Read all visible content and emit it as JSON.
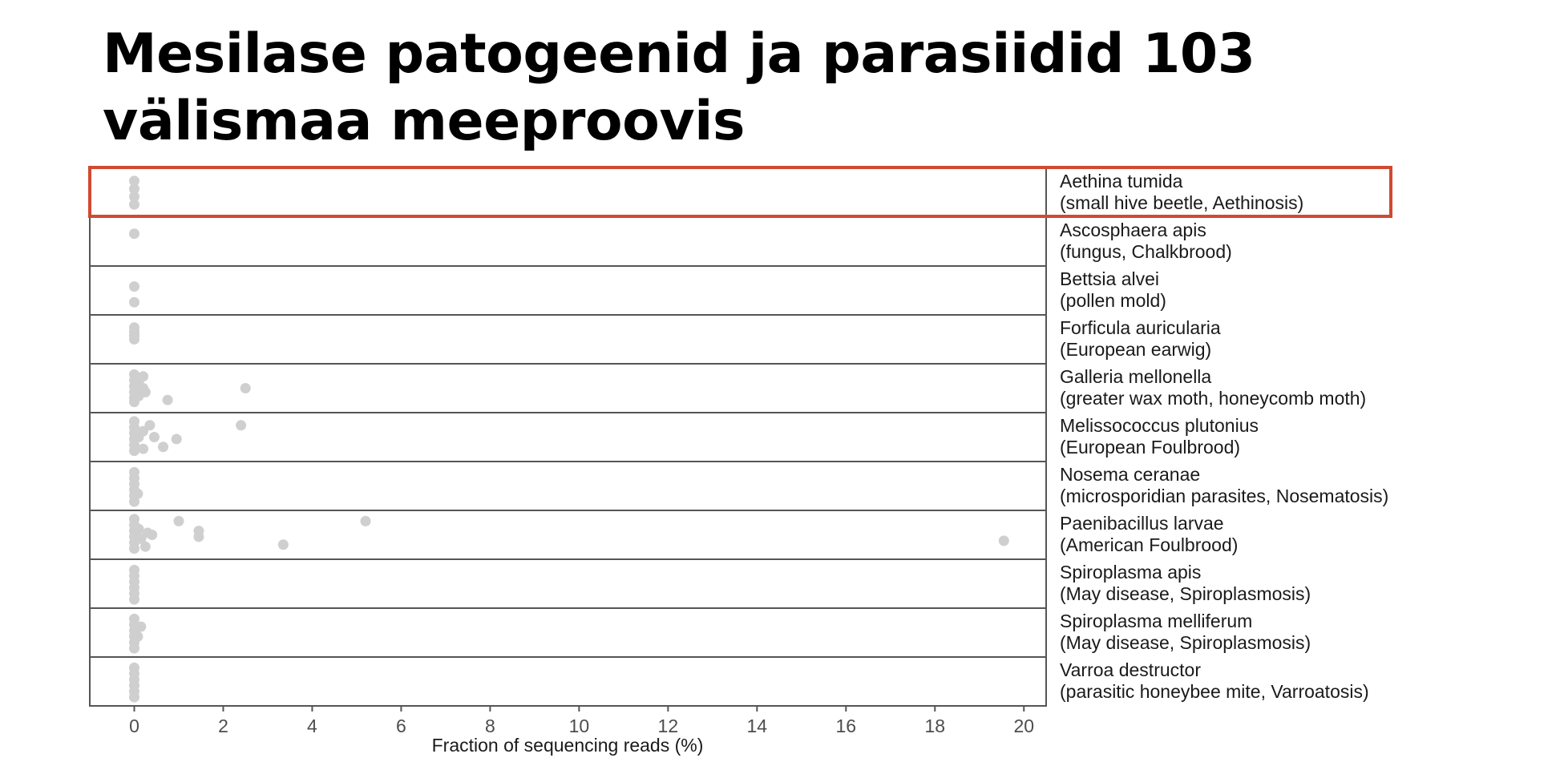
{
  "slide": {
    "title": "Mesilase patogeenid ja parasiidid 103 välismaa meeproovis"
  },
  "colors": {
    "highlight": "#d04a2f",
    "dot": "#cfcfcf",
    "panel_border": "#555555"
  },
  "chart_data": {
    "type": "scatter",
    "title": "",
    "xlabel": "Fraction of sequencing reads (%)",
    "ylabel": "",
    "xlim": [
      -1,
      20.5
    ],
    "x_ticks": [
      0,
      2,
      4,
      6,
      8,
      10,
      12,
      14,
      16,
      18,
      20
    ],
    "grid": false,
    "highlighted_panel": "Aethina tumida",
    "panels": [
      {
        "name": "Aethina tumida",
        "description": "(small hive beetle, Aethinosis)",
        "points": [
          [
            0.0,
            0.2
          ],
          [
            0.0,
            0.4
          ],
          [
            0.0,
            0.6
          ],
          [
            0.0,
            0.8
          ]
        ]
      },
      {
        "name": "Ascosphaera apis",
        "description": "(fungus, Chalkbrood)",
        "points": [
          [
            0.0,
            0.3
          ]
        ]
      },
      {
        "name": "Bettsia alvei",
        "description": "(pollen mold)",
        "points": [
          [
            0.0,
            0.4
          ],
          [
            0.0,
            0.8
          ]
        ]
      },
      {
        "name": "Forficula auricularia",
        "description": "(European earwig)",
        "points": [
          [
            0.0,
            0.2
          ],
          [
            0.0,
            0.3
          ],
          [
            0.0,
            0.4
          ],
          [
            0.0,
            0.5
          ],
          [
            0.0,
            0.4
          ]
        ]
      },
      {
        "name": "Galleria mellonella",
        "description": "(greater wax moth, honeycomb moth)",
        "points": [
          [
            0.0,
            0.15
          ],
          [
            0.0,
            0.3
          ],
          [
            0.0,
            0.45
          ],
          [
            0.0,
            0.6
          ],
          [
            0.0,
            0.75
          ],
          [
            0.0,
            0.85
          ],
          [
            0.1,
            0.35
          ],
          [
            0.2,
            0.5
          ],
          [
            0.2,
            0.2
          ],
          [
            0.25,
            0.6
          ],
          [
            0.1,
            0.7
          ],
          [
            0.75,
            0.8
          ],
          [
            2.5,
            0.5
          ]
        ]
      },
      {
        "name": "Melissococcus plutonius",
        "description": "(European Foulbrood)",
        "points": [
          [
            0.0,
            0.1
          ],
          [
            0.0,
            0.25
          ],
          [
            0.0,
            0.4
          ],
          [
            0.0,
            0.55
          ],
          [
            0.0,
            0.7
          ],
          [
            0.0,
            0.85
          ],
          [
            0.1,
            0.5
          ],
          [
            0.2,
            0.8
          ],
          [
            0.2,
            0.35
          ],
          [
            0.35,
            0.2
          ],
          [
            0.45,
            0.5
          ],
          [
            0.65,
            0.75
          ],
          [
            0.95,
            0.55
          ],
          [
            2.4,
            0.2
          ]
        ]
      },
      {
        "name": "Nosema ceranae",
        "description": "(microsporidian parasites, Nosematosis)",
        "points": [
          [
            0.0,
            0.15
          ],
          [
            0.0,
            0.3
          ],
          [
            0.0,
            0.45
          ],
          [
            0.0,
            0.6
          ],
          [
            0.0,
            0.75
          ],
          [
            0.0,
            0.9
          ],
          [
            0.08,
            0.7
          ]
        ]
      },
      {
        "name": "Paenibacillus larvae",
        "description": "(American Foulbrood)",
        "points": [
          [
            0.0,
            0.1
          ],
          [
            0.0,
            0.25
          ],
          [
            0.0,
            0.4
          ],
          [
            0.0,
            0.55
          ],
          [
            0.0,
            0.7
          ],
          [
            0.0,
            0.85
          ],
          [
            0.1,
            0.35
          ],
          [
            0.15,
            0.6
          ],
          [
            0.25,
            0.8
          ],
          [
            0.3,
            0.45
          ],
          [
            0.4,
            0.5
          ],
          [
            1.0,
            0.15
          ],
          [
            1.45,
            0.4
          ],
          [
            1.45,
            0.55
          ],
          [
            3.35,
            0.75
          ],
          [
            5.2,
            0.15
          ],
          [
            19.55,
            0.65
          ]
        ]
      },
      {
        "name": "Spiroplasma apis",
        "description": "(May disease, Spiroplasmosis)",
        "points": [
          [
            0.0,
            0.15
          ],
          [
            0.0,
            0.3
          ],
          [
            0.0,
            0.45
          ],
          [
            0.0,
            0.6
          ],
          [
            0.0,
            0.75
          ],
          [
            0.0,
            0.9
          ]
        ]
      },
      {
        "name": "Spiroplasma melliferum",
        "description": "(May disease, Spiroplasmosis)",
        "points": [
          [
            0.0,
            0.15
          ],
          [
            0.0,
            0.3
          ],
          [
            0.0,
            0.45
          ],
          [
            0.0,
            0.6
          ],
          [
            0.0,
            0.75
          ],
          [
            0.0,
            0.9
          ],
          [
            0.15,
            0.35
          ],
          [
            0.08,
            0.6
          ]
        ]
      },
      {
        "name": "Varroa destructor",
        "description": "(parasitic honeybee mite, Varroatosis)",
        "points": [
          [
            0.0,
            0.15
          ],
          [
            0.0,
            0.3
          ],
          [
            0.0,
            0.45
          ],
          [
            0.0,
            0.6
          ],
          [
            0.0,
            0.75
          ],
          [
            0.0,
            0.9
          ]
        ]
      }
    ]
  }
}
